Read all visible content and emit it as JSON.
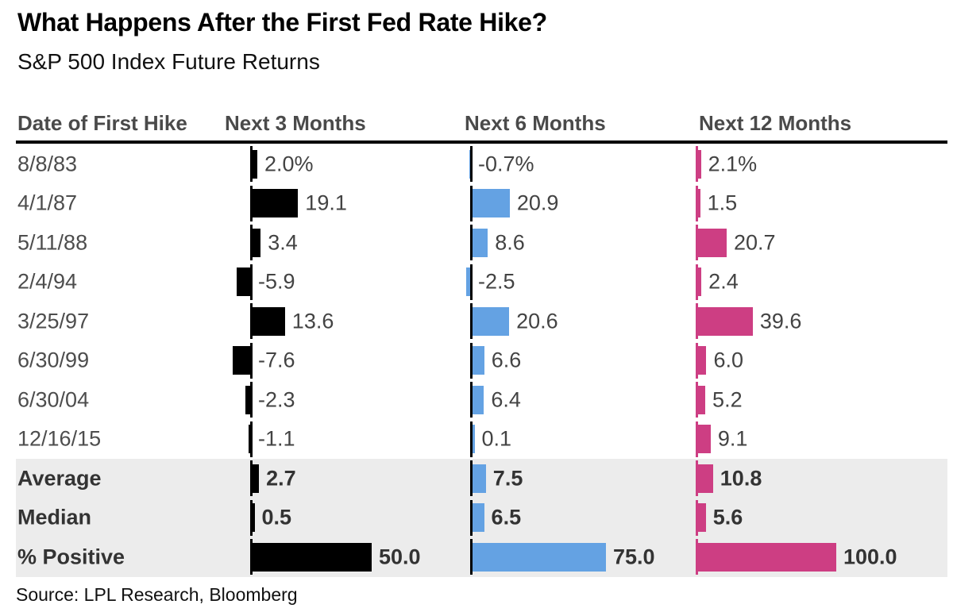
{
  "title": "What Happens After the First Fed Rate Hike?",
  "subtitle": "S&P 500 Index Future Returns",
  "source": "Source: LPL Research, Bloomberg",
  "colors": {
    "next_3_months_bar": "#000000",
    "next_6_months_bar": "#64a2e3",
    "next_12_months_bar": "#cd3e83",
    "baseline_tick": "#000000",
    "summary_band": "#ececec",
    "rule": "#000000",
    "header_text": "#4a4a4a",
    "body_text": "#4d4d4d"
  },
  "chart_data": {
    "type": "bar",
    "orientation": "horizontal",
    "title": "What Happens After the First Fed Rate Hike?",
    "subtitle": "S&P 500 Index Future Returns",
    "unit": "percent",
    "columns": [
      "Date of First Hike",
      "Next 3 Months",
      "Next 6 Months",
      "Next 12 Months"
    ],
    "series": [
      {
        "name": "Next 3 Months",
        "color": "#000000",
        "axis_max": 50
      },
      {
        "name": "Next 6 Months",
        "color": "#64a2e3",
        "axis_max": 75
      },
      {
        "name": "Next 12 Months",
        "color": "#cd3e83",
        "axis_max": 100
      }
    ],
    "rows": [
      {
        "label": "8/8/83",
        "values": [
          2.0,
          -0.7,
          2.1
        ],
        "display": [
          "2.0%",
          "-0.7%",
          "2.1%"
        ],
        "summary": false
      },
      {
        "label": "4/1/87",
        "values": [
          19.1,
          20.9,
          1.5
        ],
        "display": [
          "19.1",
          "20.9",
          "1.5"
        ],
        "summary": false
      },
      {
        "label": "5/11/88",
        "values": [
          3.4,
          8.6,
          20.7
        ],
        "display": [
          "3.4",
          "8.6",
          "20.7"
        ],
        "summary": false
      },
      {
        "label": "2/4/94",
        "values": [
          -5.9,
          -2.5,
          2.4
        ],
        "display": [
          "-5.9",
          "-2.5",
          "2.4"
        ],
        "summary": false
      },
      {
        "label": "3/25/97",
        "values": [
          13.6,
          20.6,
          39.6
        ],
        "display": [
          "13.6",
          "20.6",
          "39.6"
        ],
        "summary": false
      },
      {
        "label": "6/30/99",
        "values": [
          -7.6,
          6.6,
          6.0
        ],
        "display": [
          "-7.6",
          "6.6",
          "6.0"
        ],
        "summary": false
      },
      {
        "label": "6/30/04",
        "values": [
          -2.3,
          6.4,
          5.2
        ],
        "display": [
          "-2.3",
          "6.4",
          "5.2"
        ],
        "summary": false
      },
      {
        "label": "12/16/15",
        "values": [
          -1.1,
          0.1,
          9.1
        ],
        "display": [
          "-1.1",
          "0.1",
          "9.1"
        ],
        "summary": false
      },
      {
        "label": "Average",
        "values": [
          2.7,
          7.5,
          10.8
        ],
        "display": [
          "2.7",
          "7.5",
          "10.8"
        ],
        "summary": true
      },
      {
        "label": "Median",
        "values": [
          0.5,
          6.5,
          5.6
        ],
        "display": [
          "0.5",
          "6.5",
          "5.6"
        ],
        "summary": true
      },
      {
        "label": "% Positive",
        "values": [
          50.0,
          75.0,
          100.0
        ],
        "display": [
          "50.0",
          "75.0",
          "100.0"
        ],
        "summary": true
      }
    ]
  }
}
